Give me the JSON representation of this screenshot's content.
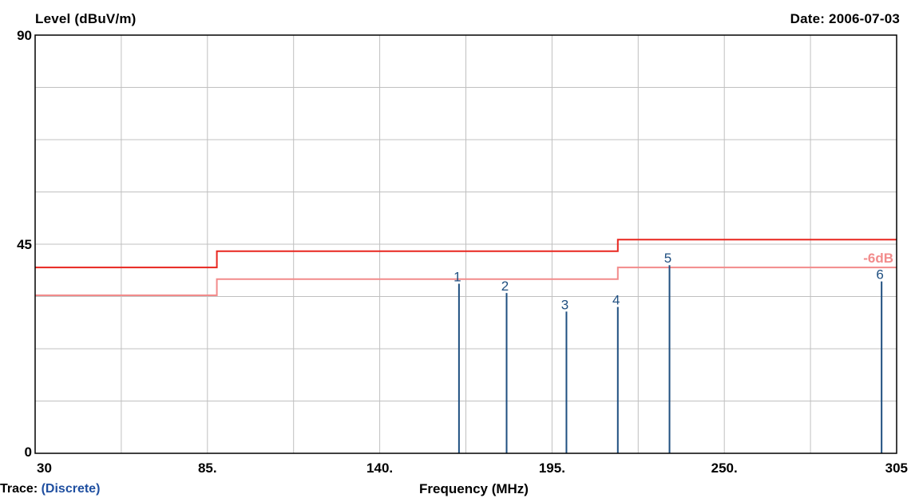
{
  "header": {
    "y_label": "Level (dBuV/m)",
    "date": "Date: 2006-07-03"
  },
  "footer": {
    "trace_label": "Trace:",
    "trace_value": "(Discrete)"
  },
  "chart_data": {
    "type": "line",
    "xlabel": "Frequency (MHz)",
    "ylabel": "Level (dBuV/m)",
    "xlim": [
      30,
      305
    ],
    "ylim": [
      0,
      90
    ],
    "x_tick_labels": [
      {
        "value": 30,
        "text": "30"
      },
      {
        "value": 85,
        "text": "85."
      },
      {
        "value": 140,
        "text": "140."
      },
      {
        "value": 195,
        "text": "195."
      },
      {
        "value": 250,
        "text": "250."
      },
      {
        "value": 305,
        "text": "305"
      }
    ],
    "y_tick_labels": [
      {
        "value": 0,
        "text": "0"
      },
      {
        "value": 45,
        "text": "45"
      },
      {
        "value": 90,
        "text": "90"
      }
    ],
    "grid": true,
    "limit_lines": [
      {
        "name": "",
        "color": "#e8261f",
        "points": [
          [
            30,
            40
          ],
          [
            88,
            40
          ],
          [
            88,
            43.5
          ],
          [
            216,
            43.5
          ],
          [
            216,
            46
          ],
          [
            305,
            46
          ]
        ]
      },
      {
        "name": "-6dB",
        "color": "#f28b8b",
        "points": [
          [
            30,
            34
          ],
          [
            88,
            34
          ],
          [
            88,
            37.5
          ],
          [
            216,
            37.5
          ],
          [
            216,
            40
          ],
          [
            305,
            40
          ]
        ]
      }
    ],
    "limit_line_label": "-6dB",
    "markers": [
      {
        "label": "1",
        "x": 165.3,
        "y": 36.5
      },
      {
        "label": "2",
        "x": 180.5,
        "y": 34.5
      },
      {
        "label": "3",
        "x": 199.6,
        "y": 30.5
      },
      {
        "label": "4",
        "x": 216.0,
        "y": 31.5
      },
      {
        "label": "5",
        "x": 232.5,
        "y": 40.5
      },
      {
        "label": "6",
        "x": 300.2,
        "y": 37.0
      }
    ],
    "colors": {
      "marker": "#1f4f80",
      "grid": "#c0c0c0",
      "axis": "#000000"
    }
  }
}
